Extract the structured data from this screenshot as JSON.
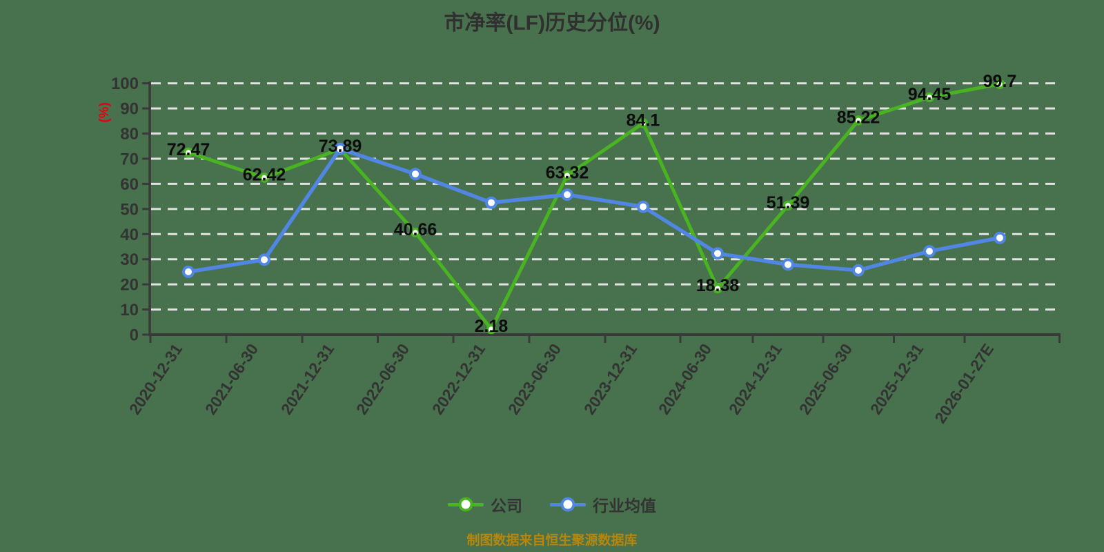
{
  "title": "市净率(LF)历史分位(%)",
  "y_axis_unit": "(%)",
  "footer": "制图数据来自恒生聚源数据库",
  "legend": [
    {
      "label": "公司",
      "color": "#49b322"
    },
    {
      "label": "行业均值",
      "color": "#5186e3"
    }
  ],
  "colors": {
    "background": "#48714d",
    "title_text": "#303030",
    "axis_text": "#333333",
    "data_label_text": "#0d0d0d",
    "grid_line": "#e3e3e3",
    "axis_line": "#3a3a3a",
    "accent_red": "#e60012",
    "footer_orange": "#b8860b",
    "company_green": "#49b322",
    "industry_blue": "#5186e3",
    "marker_fill": "#ffffff"
  },
  "chart_data": {
    "type": "line",
    "title": "市净率(LF)历史分位(%)",
    "ylabel": "(%)",
    "ylim": [
      0,
      100
    ],
    "y_ticks": [
      0,
      10,
      20,
      30,
      40,
      50,
      60,
      70,
      80,
      90,
      100
    ],
    "grid": "horizontal-dashed",
    "legend_position": "bottom",
    "categories": [
      "2020-12-31",
      "2021-06-30",
      "2021-12-31",
      "2022-06-30",
      "2022-12-31",
      "2023-06-30",
      "2023-12-31",
      "2024-06-30",
      "2024-12-31",
      "2025-06-30",
      "2025-12-31",
      "2026-01-27E"
    ],
    "series": [
      {
        "name": "公司",
        "color": "#49b322",
        "values": [
          72.47,
          62.42,
          73.89,
          40.66,
          2.18,
          63.32,
          84.1,
          18.38,
          51.39,
          85.22,
          94.45,
          99.7
        ],
        "labels": [
          "72.47",
          "62.42",
          "73.89",
          "40.66",
          "2.18",
          "63.32",
          "84.1",
          "18.38",
          "51.39",
          "85.22",
          "94.45",
          "99.7"
        ]
      },
      {
        "name": "行业均值",
        "color": "#5186e3",
        "values": [
          25,
          29.8,
          73.9,
          63.9,
          52.5,
          55.7,
          50.9,
          32.3,
          27.9,
          25.6,
          33.2,
          38.5
        ],
        "labels": []
      }
    ]
  }
}
